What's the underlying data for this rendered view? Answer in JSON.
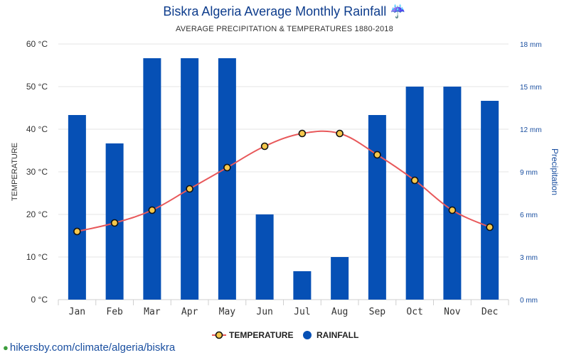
{
  "chart_data": {
    "type": "bar+line",
    "title": "Biskra Algeria Average Monthly Rainfall",
    "title_icon": "umbrella-rain-icon",
    "subtitle": "AVERAGE PRECIPITATION & TEMPERATURES 1880-2018",
    "categories": [
      "Jan",
      "Feb",
      "Mar",
      "Apr",
      "May",
      "Jun",
      "Jul",
      "Aug",
      "Sep",
      "Oct",
      "Nov",
      "Dec"
    ],
    "series": [
      {
        "name": "TEMPERATURE",
        "type": "line",
        "axis": "left",
        "unit": "°C",
        "color": "#e8585a",
        "marker_color": "#f6c84c",
        "values": [
          16,
          18,
          21,
          26,
          31,
          36,
          39,
          39,
          34,
          28,
          21,
          17
        ]
      },
      {
        "name": "RAINFALL",
        "type": "bar",
        "axis": "right",
        "unit": "mm",
        "color": "#0650b5",
        "values": [
          13,
          11,
          17,
          17,
          17,
          6,
          2,
          3,
          13,
          15,
          15,
          14
        ]
      }
    ],
    "ylabel_left": "TEMPERATURE",
    "ylabel_right": "Precipitation",
    "ylim_left": [
      0,
      60
    ],
    "ylim_right": [
      0,
      18
    ],
    "yticks_left": [
      "0 °C",
      "10 °C",
      "20 °C",
      "30 °C",
      "40 °C",
      "50 °C",
      "60 °C"
    ],
    "yticks_right": [
      "0 mm",
      "3 mm",
      "6 mm",
      "9 mm",
      "12 mm",
      "15 mm",
      "18 mm"
    ],
    "grid": true,
    "legend_position": "bottom"
  },
  "source": {
    "text": "hikersby.com/climate/algeria/biskra",
    "icon": "location-pin-icon"
  }
}
